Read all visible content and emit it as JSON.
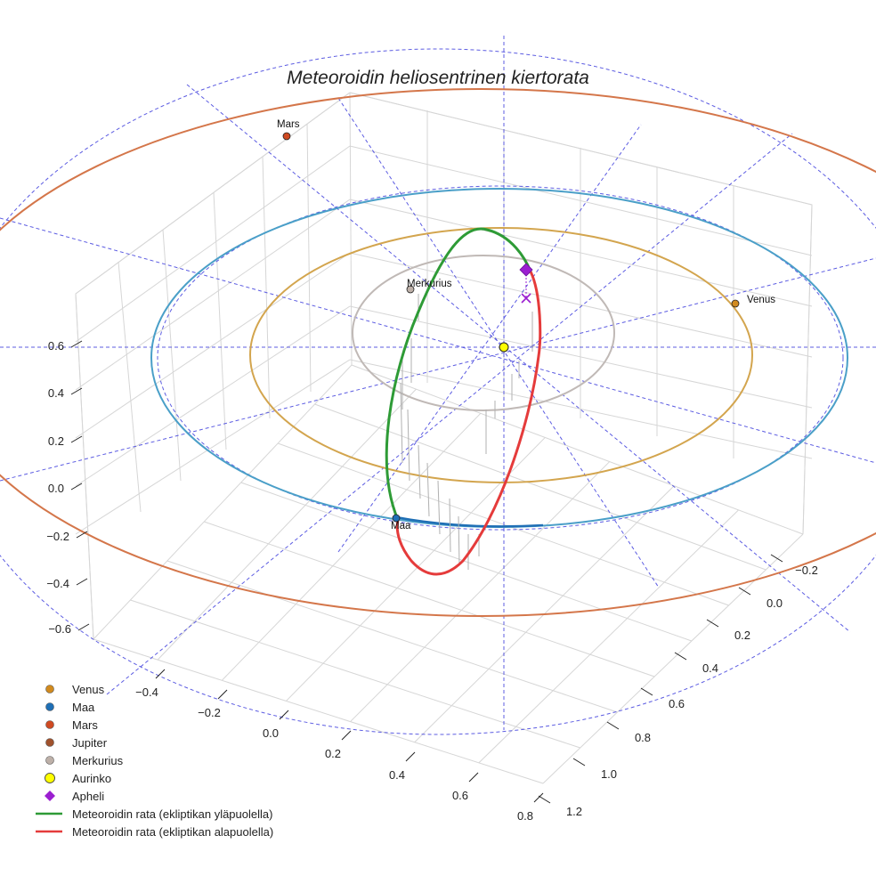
{
  "chart_data": {
    "type": "3d-orbit",
    "title": "Meteoroidin heliosentrinen kiertorata",
    "colors": {
      "venus": "#d18a1e",
      "maa": "#1f6fb5",
      "mars": "#cf4a22",
      "jupiter": "#a0522d",
      "merkurius": "#bdb0a8",
      "aurinko": "#ffff00",
      "apheli": "#9b1fd0",
      "above": "#2e9b36",
      "below": "#e53b3b",
      "grid": "#d6d6d6",
      "guides": "#4a4adf"
    },
    "axes": {
      "z_ticks": [
        "0.6",
        "0.4",
        "0.2",
        "0.0",
        "−0.2",
        "−0.4",
        "−0.6"
      ],
      "x_ticks": [
        "−0.4",
        "−0.2",
        "0.0",
        "0.2",
        "0.4",
        "0.6",
        "0.8"
      ],
      "y_ticks": [
        "−0.2",
        "0.0",
        "0.2",
        "0.4",
        "0.6",
        "0.8",
        "1.0",
        "1.2"
      ]
    },
    "planet_labels": {
      "mars": "Mars",
      "merkurius": "Merkurius",
      "venus": "Venus",
      "maa": "Maa"
    },
    "legend": [
      {
        "label": "Venus",
        "marker": "dot",
        "color": "#d18a1e"
      },
      {
        "label": "Maa",
        "marker": "dot",
        "color": "#1f6fb5"
      },
      {
        "label": "Mars",
        "marker": "dot",
        "color": "#cf4a22"
      },
      {
        "label": "Jupiter",
        "marker": "dot",
        "color": "#a0522d"
      },
      {
        "label": "Merkurius",
        "marker": "dot",
        "color": "#bdb0a8"
      },
      {
        "label": "Aurinko",
        "marker": "sun",
        "color": "#ffff00"
      },
      {
        "label": "Apheli",
        "marker": "diamond",
        "color": "#9b1fd0"
      },
      {
        "label": "Meteoroidin rata (ekliptikan yläpuolella)",
        "marker": "line",
        "color": "#2e9b36"
      },
      {
        "label": "Meteoroidin rata (ekliptikan alapuolella)",
        "marker": "line",
        "color": "#e53b3b"
      }
    ]
  }
}
